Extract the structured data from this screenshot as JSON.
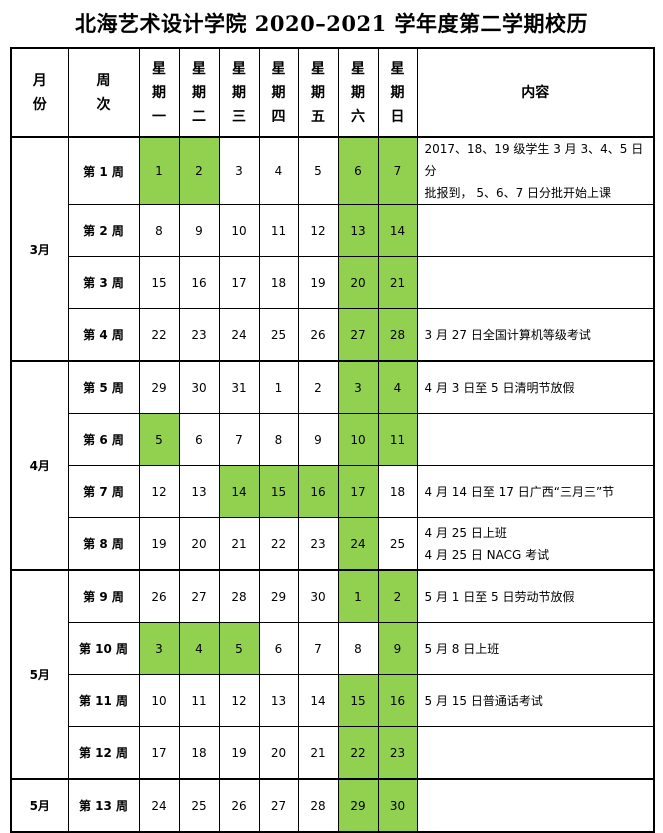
{
  "title": "北海艺术设计学院 2020–2021 学年度第二学期校历",
  "highlight_color": "#92d050",
  "headers": {
    "month": "月\n份",
    "week": "周\n次",
    "days": [
      "星\n期\n一",
      "星\n期\n二",
      "星\n期\n三",
      "星\n期\n四",
      "星\n期\n五",
      "星\n期\n六",
      "星\n期\n日"
    ],
    "content": "内容"
  },
  "months": [
    {
      "label": "3月",
      "rows": 4
    },
    {
      "label": "4月",
      "rows": 4
    },
    {
      "label": "5月",
      "rows": 4
    },
    {
      "label": "5月",
      "rows": 1
    }
  ],
  "weeks": [
    {
      "week": "第 1 周",
      "days": [
        1,
        2,
        3,
        4,
        5,
        6,
        7
      ],
      "highlighted": [
        true,
        true,
        false,
        false,
        false,
        true,
        true
      ],
      "content": [
        "2017、18、19 级学生 3 月 3、4、5 日分",
        "批报到， 5、6、7 日分批开始上课"
      ]
    },
    {
      "week": "第 2 周",
      "days": [
        8,
        9,
        10,
        11,
        12,
        13,
        14
      ],
      "highlighted": [
        false,
        false,
        false,
        false,
        false,
        true,
        true
      ],
      "content": []
    },
    {
      "week": "第 3 周",
      "days": [
        15,
        16,
        17,
        18,
        19,
        20,
        21
      ],
      "highlighted": [
        false,
        false,
        false,
        false,
        false,
        true,
        true
      ],
      "content": []
    },
    {
      "week": "第 4 周",
      "days": [
        22,
        23,
        24,
        25,
        26,
        27,
        28
      ],
      "highlighted": [
        false,
        false,
        false,
        false,
        false,
        true,
        true
      ],
      "content": [
        "3 月 27 日全国计算机等级考试"
      ]
    },
    {
      "week": "第 5 周",
      "days": [
        29,
        30,
        31,
        1,
        2,
        3,
        4
      ],
      "highlighted": [
        false,
        false,
        false,
        false,
        false,
        true,
        true
      ],
      "content": [
        "4 月 3 日至 5 日清明节放假"
      ]
    },
    {
      "week": "第 6 周",
      "days": [
        5,
        6,
        7,
        8,
        9,
        10,
        11
      ],
      "highlighted": [
        true,
        false,
        false,
        false,
        false,
        true,
        true
      ],
      "content": []
    },
    {
      "week": "第 7 周",
      "days": [
        12,
        13,
        14,
        15,
        16,
        17,
        18
      ],
      "highlighted": [
        false,
        false,
        true,
        true,
        true,
        true,
        false
      ],
      "content": [
        "4 月 14 日至 17 日广西“三月三”节"
      ]
    },
    {
      "week": "第 8 周",
      "days": [
        19,
        20,
        21,
        22,
        23,
        24,
        25
      ],
      "highlighted": [
        false,
        false,
        false,
        false,
        false,
        true,
        false
      ],
      "content": [
        "4 月 25 日上班",
        "4 月 25 日 NACG 考试"
      ]
    },
    {
      "week": "第 9 周",
      "days": [
        26,
        27,
        28,
        29,
        30,
        1,
        2
      ],
      "highlighted": [
        false,
        false,
        false,
        false,
        false,
        true,
        true
      ],
      "content": [
        "5 月 1 日至 5 日劳动节放假"
      ]
    },
    {
      "week": "第 10 周",
      "days": [
        3,
        4,
        5,
        6,
        7,
        8,
        9
      ],
      "highlighted": [
        true,
        true,
        true,
        false,
        false,
        false,
        true
      ],
      "content": [
        "5 月 8 日上班"
      ]
    },
    {
      "week": "第 11 周",
      "days": [
        10,
        11,
        12,
        13,
        14,
        15,
        16
      ],
      "highlighted": [
        false,
        false,
        false,
        false,
        false,
        true,
        true
      ],
      "content": [
        "5 月 15 日普通话考试"
      ]
    },
    {
      "week": "第 12 周",
      "days": [
        17,
        18,
        19,
        20,
        21,
        22,
        23
      ],
      "highlighted": [
        false,
        false,
        false,
        false,
        false,
        true,
        true
      ],
      "content": []
    },
    {
      "week": "第 13 周",
      "days": [
        24,
        25,
        26,
        27,
        28,
        29,
        30
      ],
      "highlighted": [
        false,
        false,
        false,
        false,
        false,
        true,
        true
      ],
      "content": []
    }
  ]
}
